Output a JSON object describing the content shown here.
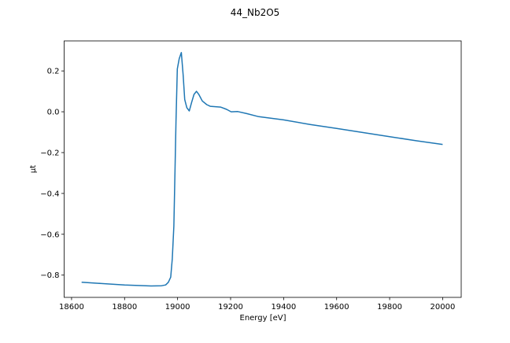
{
  "chart_data": {
    "type": "line",
    "title": "44_Nb2O5",
    "xlabel": "Energy [eV]",
    "ylabel": "μt",
    "xlim": [
      18572,
      20070
    ],
    "ylim": [
      -0.909,
      0.347
    ],
    "xticks": [
      18600,
      18800,
      19000,
      19200,
      19400,
      19600,
      19800,
      20000
    ],
    "xtick_labels": [
      "18600",
      "18800",
      "19000",
      "19200",
      "19400",
      "19600",
      "19800",
      "20000"
    ],
    "yticks": [
      0.2,
      0.0,
      -0.2,
      -0.4,
      -0.6,
      -0.8
    ],
    "ytick_labels": [
      "0.2",
      "0.0",
      "−0.2",
      "−0.4",
      "−0.6",
      "−0.8"
    ],
    "grid": false,
    "series": [
      {
        "name": "44_Nb2O5",
        "color": "#1f77b4",
        "x": [
          18638,
          18700,
          18800,
          18900,
          18940,
          18955,
          18965,
          18974,
          18980,
          18986,
          18990,
          18994,
          18999,
          19006,
          19014,
          19021,
          19027,
          19035,
          19044,
          19053,
          19062,
          19071,
          19080,
          19093,
          19110,
          19123,
          19162,
          19185,
          19202,
          19227,
          19261,
          19306,
          19400,
          19500,
          19600,
          19700,
          19800,
          19900,
          20000
        ],
        "y": [
          -0.835,
          -0.84,
          -0.848,
          -0.853,
          -0.852,
          -0.848,
          -0.835,
          -0.81,
          -0.72,
          -0.56,
          -0.3,
          -0.05,
          0.21,
          0.26,
          0.29,
          0.18,
          0.06,
          0.02,
          0.004,
          0.046,
          0.085,
          0.1,
          0.085,
          0.053,
          0.035,
          0.027,
          0.023,
          0.012,
          0.0,
          0.001,
          -0.009,
          -0.024,
          -0.04,
          -0.062,
          -0.082,
          -0.102,
          -0.122,
          -0.142,
          -0.16
        ]
      }
    ]
  }
}
